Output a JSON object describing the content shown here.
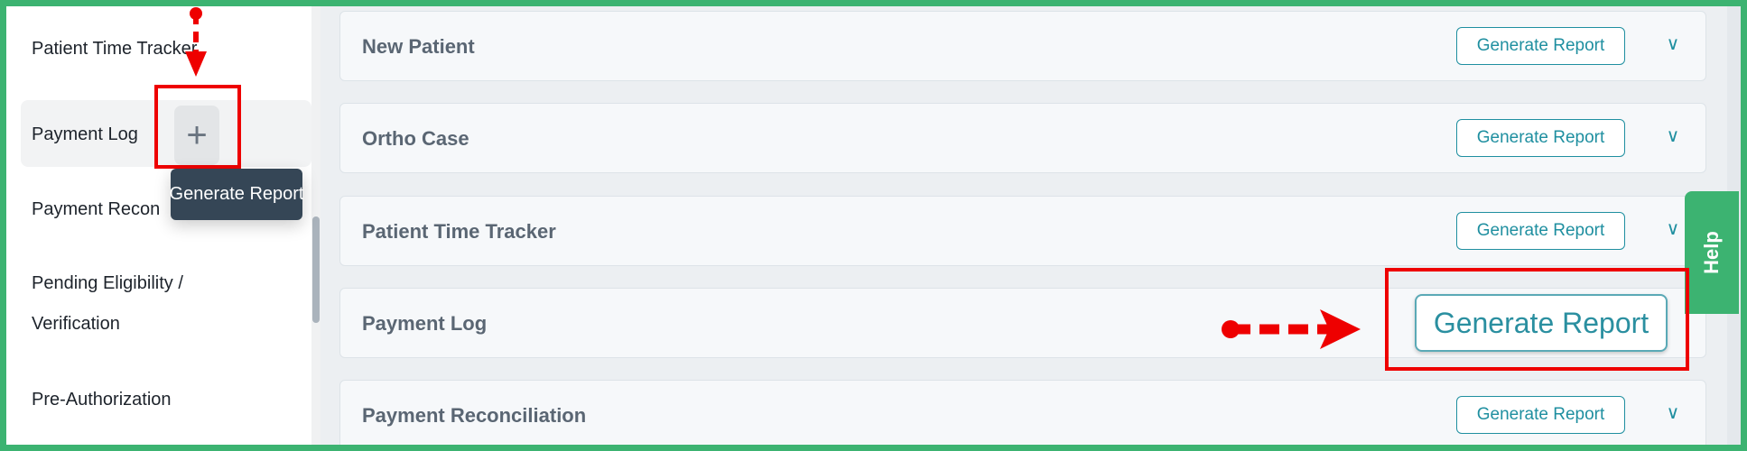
{
  "sidebar": {
    "items": [
      {
        "label": "Patient Time Tracker"
      },
      {
        "label": "Payment Log"
      },
      {
        "label": "Payment Recon"
      },
      {
        "label": "Pending Eligibility /"
      },
      {
        "label": "Verification"
      },
      {
        "label": "Pre-Authorization"
      }
    ],
    "plus_icon": "+",
    "tooltip": "Generate Report"
  },
  "cards": [
    {
      "title": "New Patient",
      "button": "Generate Report"
    },
    {
      "title": "Ortho Case",
      "button": "Generate Report"
    },
    {
      "title": "Patient Time Tracker",
      "button": "Generate Report"
    },
    {
      "title": "Payment Log",
      "button": "Generate Report"
    },
    {
      "title": "Payment Reconciliation",
      "button": "Generate Report"
    }
  ],
  "chevron": "∨",
  "help": "Help",
  "colors": {
    "accent": "#1f8fa0",
    "help": "#3cb371",
    "annotation": "#e00000",
    "tooltip": "#354656"
  }
}
